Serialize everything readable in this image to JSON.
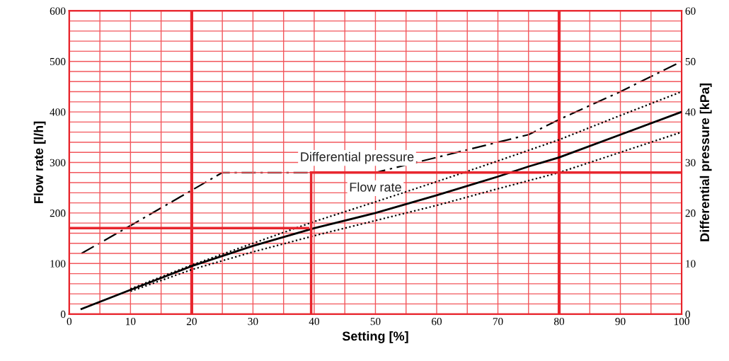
{
  "chart_data": {
    "type": "line",
    "xlabel": "Setting [%]",
    "ylabel": "Flow rate [l/h]",
    "y2label": "Differential pressure [kPa]",
    "xlim": [
      0,
      100
    ],
    "xticks": [
      0,
      {
        "value": 5,
        "label": null
      },
      10,
      {
        "value": 15,
        "label": null
      },
      20,
      {
        "value": 25,
        "label": null
      },
      30,
      {
        "value": 35,
        "label": null
      },
      40,
      {
        "value": 45,
        "label": null
      },
      50,
      {
        "value": 55,
        "label": null
      },
      60,
      {
        "value": 65,
        "label": null
      },
      70,
      {
        "value": 75,
        "label": null
      },
      80,
      {
        "value": 85,
        "label": null
      },
      90,
      {
        "value": 95,
        "label": null
      },
      100
    ],
    "ylim": [
      0,
      600
    ],
    "yticks": [
      0,
      {
        "value": 20,
        "label": null
      },
      {
        "value": 40,
        "label": null
      },
      {
        "value": 60,
        "label": null
      },
      {
        "value": 80,
        "label": null
      },
      100,
      {
        "value": 120,
        "label": null
      },
      {
        "value": 140,
        "label": null
      },
      {
        "value": 160,
        "label": null
      },
      {
        "value": 180,
        "label": null
      },
      200,
      {
        "value": 220,
        "label": null
      },
      {
        "value": 240,
        "label": null
      },
      {
        "value": 260,
        "label": null
      },
      {
        "value": 280,
        "label": null
      },
      300,
      {
        "value": 320,
        "label": null
      },
      {
        "value": 340,
        "label": null
      },
      {
        "value": 360,
        "label": null
      },
      {
        "value": 380,
        "label": null
      },
      400,
      {
        "value": 420,
        "label": null
      },
      {
        "value": 440,
        "label": null
      },
      {
        "value": 460,
        "label": null
      },
      {
        "value": 480,
        "label": null
      },
      500,
      {
        "value": 520,
        "label": null
      },
      {
        "value": 540,
        "label": null
      },
      {
        "value": 560,
        "label": null
      },
      {
        "value": 580,
        "label": null
      },
      600
    ],
    "y2lim": [
      0,
      60
    ],
    "y2ticks": [
      0,
      10,
      20,
      30,
      40,
      50,
      60
    ],
    "grid": true,
    "series": [
      {
        "color": "#000000",
        "line_style": "solid",
        "x": [
          2,
          10,
          20,
          30,
          40,
          50,
          60,
          70,
          75,
          80,
          90,
          100
        ],
        "values": [
          10,
          48,
          95,
          135,
          170,
          200,
          235,
          272,
          292,
          310,
          355,
          400
        ]
      },
      {
        "color": "#000000",
        "line_style": "dotted",
        "x": [
          10,
          20,
          30,
          40,
          50,
          60,
          70,
          80,
          90,
          100
        ],
        "values": [
          50,
          97,
          140,
          183,
          222,
          262,
          303,
          345,
          393,
          440
        ]
      },
      {
        "color": "#000000",
        "line_style": "dotted",
        "x": [
          10,
          20,
          30,
          40,
          50,
          60,
          70,
          80,
          90,
          100
        ],
        "values": [
          45,
          88,
          123,
          155,
          185,
          215,
          248,
          280,
          320,
          360
        ]
      },
      {
        "color": "#000000",
        "line_style": "dashed",
        "axis": "y2",
        "x": [
          2,
          10,
          20,
          25,
          50,
          60,
          70,
          75,
          80,
          90,
          100
        ],
        "values": [
          12,
          17.5,
          24.5,
          28,
          28,
          31,
          34,
          35.5,
          38.5,
          44,
          50
        ]
      },
      {
        "color": "#e8262e",
        "line_style": "solid",
        "x": [
          0,
          39
        ],
        "values": [
          170,
          170
        ]
      },
      {
        "color": "#e8262e",
        "line_style": "solid",
        "x": [
          39.5,
          39.5
        ],
        "values": [
          0,
          280
        ]
      },
      {
        "color": "#e8262e",
        "line_style": "solid",
        "x": [
          39.5,
          100
        ],
        "values": [
          280,
          280
        ]
      }
    ],
    "ref_lines": [
      {
        "axis": "x",
        "value": 20,
        "color": "#e8262e"
      },
      {
        "axis": "x",
        "value": 80,
        "color": "#e8262e"
      }
    ],
    "annotations": [
      "Differential pressure",
      "Flow rate"
    ]
  }
}
